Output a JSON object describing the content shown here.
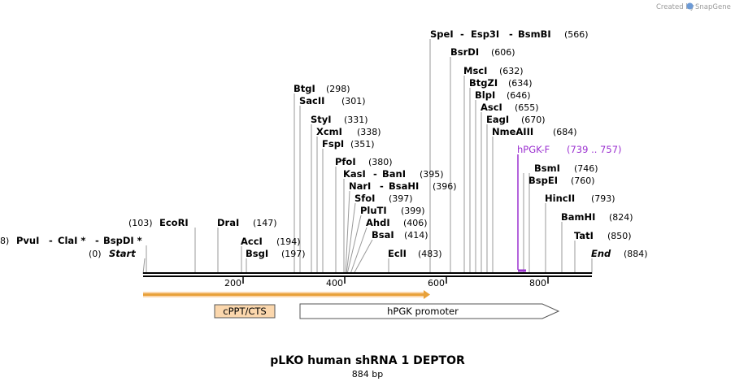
{
  "credit": {
    "text": "Created by",
    "brand": "SnapGene"
  },
  "plasmid": {
    "name": "pLKO human shRNA 1 DEPTOR",
    "length_label": "884 bp",
    "length": 884
  },
  "ticks": [
    "200",
    "400",
    "600",
    "800"
  ],
  "sites": [
    {
      "name": "SpeI",
      "pos": "(566)"
    },
    {
      "name": "Esp3I",
      "pos": ""
    },
    {
      "name": "BsmBI",
      "pos": ""
    },
    {
      "name": "BsrDI",
      "pos": "(606)"
    },
    {
      "name": "MscI",
      "pos": "(632)"
    },
    {
      "name": "BtgZI",
      "pos": "(634)"
    },
    {
      "name": "BlpI",
      "pos": "(646)"
    },
    {
      "name": "AscI",
      "pos": "(655)"
    },
    {
      "name": "EagI",
      "pos": "(670)"
    },
    {
      "name": "NmeAIII",
      "pos": "(684)"
    },
    {
      "name": "BtgI",
      "pos": "(298)"
    },
    {
      "name": "SacII",
      "pos": "(301)"
    },
    {
      "name": "StyI",
      "pos": "(331)"
    },
    {
      "name": "XcmI",
      "pos": "(338)"
    },
    {
      "name": "FspI",
      "pos": "(351)"
    },
    {
      "name": "PfoI",
      "pos": "(380)"
    },
    {
      "name": "KasI",
      "pos": ""
    },
    {
      "name": "BanI",
      "pos": "(395)"
    },
    {
      "name": "NarI",
      "pos": ""
    },
    {
      "name": "BsaHI",
      "pos": "(396)"
    },
    {
      "name": "SfoI",
      "pos": "(397)"
    },
    {
      "name": "PluTI",
      "pos": "(399)"
    },
    {
      "name": "AhdI",
      "pos": "(406)"
    },
    {
      "name": "BsaI",
      "pos": "(414)"
    },
    {
      "name": "EclI",
      "pos": "(483)"
    },
    {
      "name": "EcoRI",
      "pos": "(103)"
    },
    {
      "name": "DraI",
      "pos": "(147)"
    },
    {
      "name": "AccI",
      "pos": "(194)"
    },
    {
      "name": "BsgI",
      "pos": "(197)"
    },
    {
      "name": "PvuI",
      "pos": "8)"
    },
    {
      "name": "ClaI *",
      "pos": ""
    },
    {
      "name": "BspDI *",
      "pos": ""
    },
    {
      "name": "BsmI",
      "pos": "(746)"
    },
    {
      "name": "BspEI",
      "pos": "(760)"
    },
    {
      "name": "HincII",
      "pos": "(793)"
    },
    {
      "name": "BamHI",
      "pos": "(824)"
    },
    {
      "name": "TatI",
      "pos": "(850)"
    }
  ],
  "ends": [
    {
      "name": "Start",
      "pos": "(0)"
    },
    {
      "name": "End",
      "pos": "(884)"
    }
  ],
  "primer": {
    "name": "hPGK-F",
    "range": "(739 .. 757)",
    "start": 739,
    "end": 757,
    "color": "#9b30d0"
  },
  "features": [
    {
      "name": "cPPT/CTS",
      "color": "#fbd7ad"
    },
    {
      "name": "hPGK promoter",
      "color": "#ffffff"
    }
  ],
  "colors": {
    "orange_arrow": "#e8a13a",
    "brand": "#4a7fc1"
  }
}
